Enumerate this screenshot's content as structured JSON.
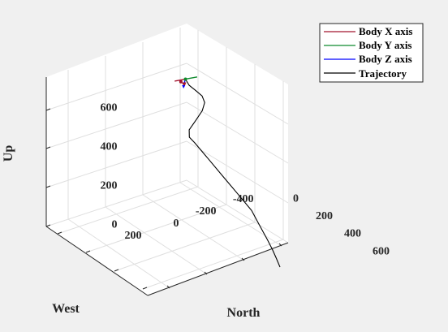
{
  "chart_data": {
    "type": "line",
    "projection": "3d",
    "xlabel": "North",
    "ylabel": "West",
    "zlabel": "Up",
    "xlim": [
      -100,
      650
    ],
    "ylim": [
      -450,
      300
    ],
    "zlim": [
      0,
      750
    ],
    "x_ticks": [
      "0",
      "200",
      "400",
      "600"
    ],
    "y_ticks": [
      "-400",
      "-200",
      "0",
      "200"
    ],
    "z_ticks": [
      "0",
      "200",
      "400",
      "600"
    ],
    "grid": true,
    "legend_position": "top-right, outside",
    "series": [
      {
        "name": "Trajectory",
        "color": "#000000",
        "points": [
          [
            600,
            0,
            0
          ],
          [
            575,
            0,
            33
          ],
          [
            547,
            0,
            66
          ],
          [
            512,
            0,
            100
          ],
          [
            475,
            0,
            133
          ],
          [
            437,
            0,
            166
          ],
          [
            400,
            0,
            200
          ],
          [
            300,
            0,
            242
          ],
          [
            200,
            0,
            283
          ],
          [
            100,
            0,
            325
          ],
          [
            0,
            0,
            366
          ],
          [
            0,
            29,
            404
          ],
          [
            0,
            30,
            442
          ],
          [
            0,
            -6,
            480
          ],
          [
            0,
            -40,
            518
          ],
          [
            0,
            -53,
            556
          ],
          [
            0,
            -39,
            594
          ],
          [
            0,
            -5,
            632
          ],
          [
            0,
            30,
            670
          ],
          [
            0,
            50,
            708
          ]
        ]
      },
      {
        "name": "Body X axis",
        "color": "#a2142f"
      },
      {
        "name": "Body Y axis",
        "color": "#0f8a2d"
      },
      {
        "name": "Body Z axis",
        "color": "#0000ff"
      }
    ],
    "body_frame": {
      "origin": [
        0,
        50,
        708
      ],
      "x_axis_end": [
        -30,
        85,
        695
      ],
      "y_axis_end": [
        30,
        10,
        720
      ],
      "z_axis_end": [
        0,
        60,
        680
      ]
    }
  }
}
